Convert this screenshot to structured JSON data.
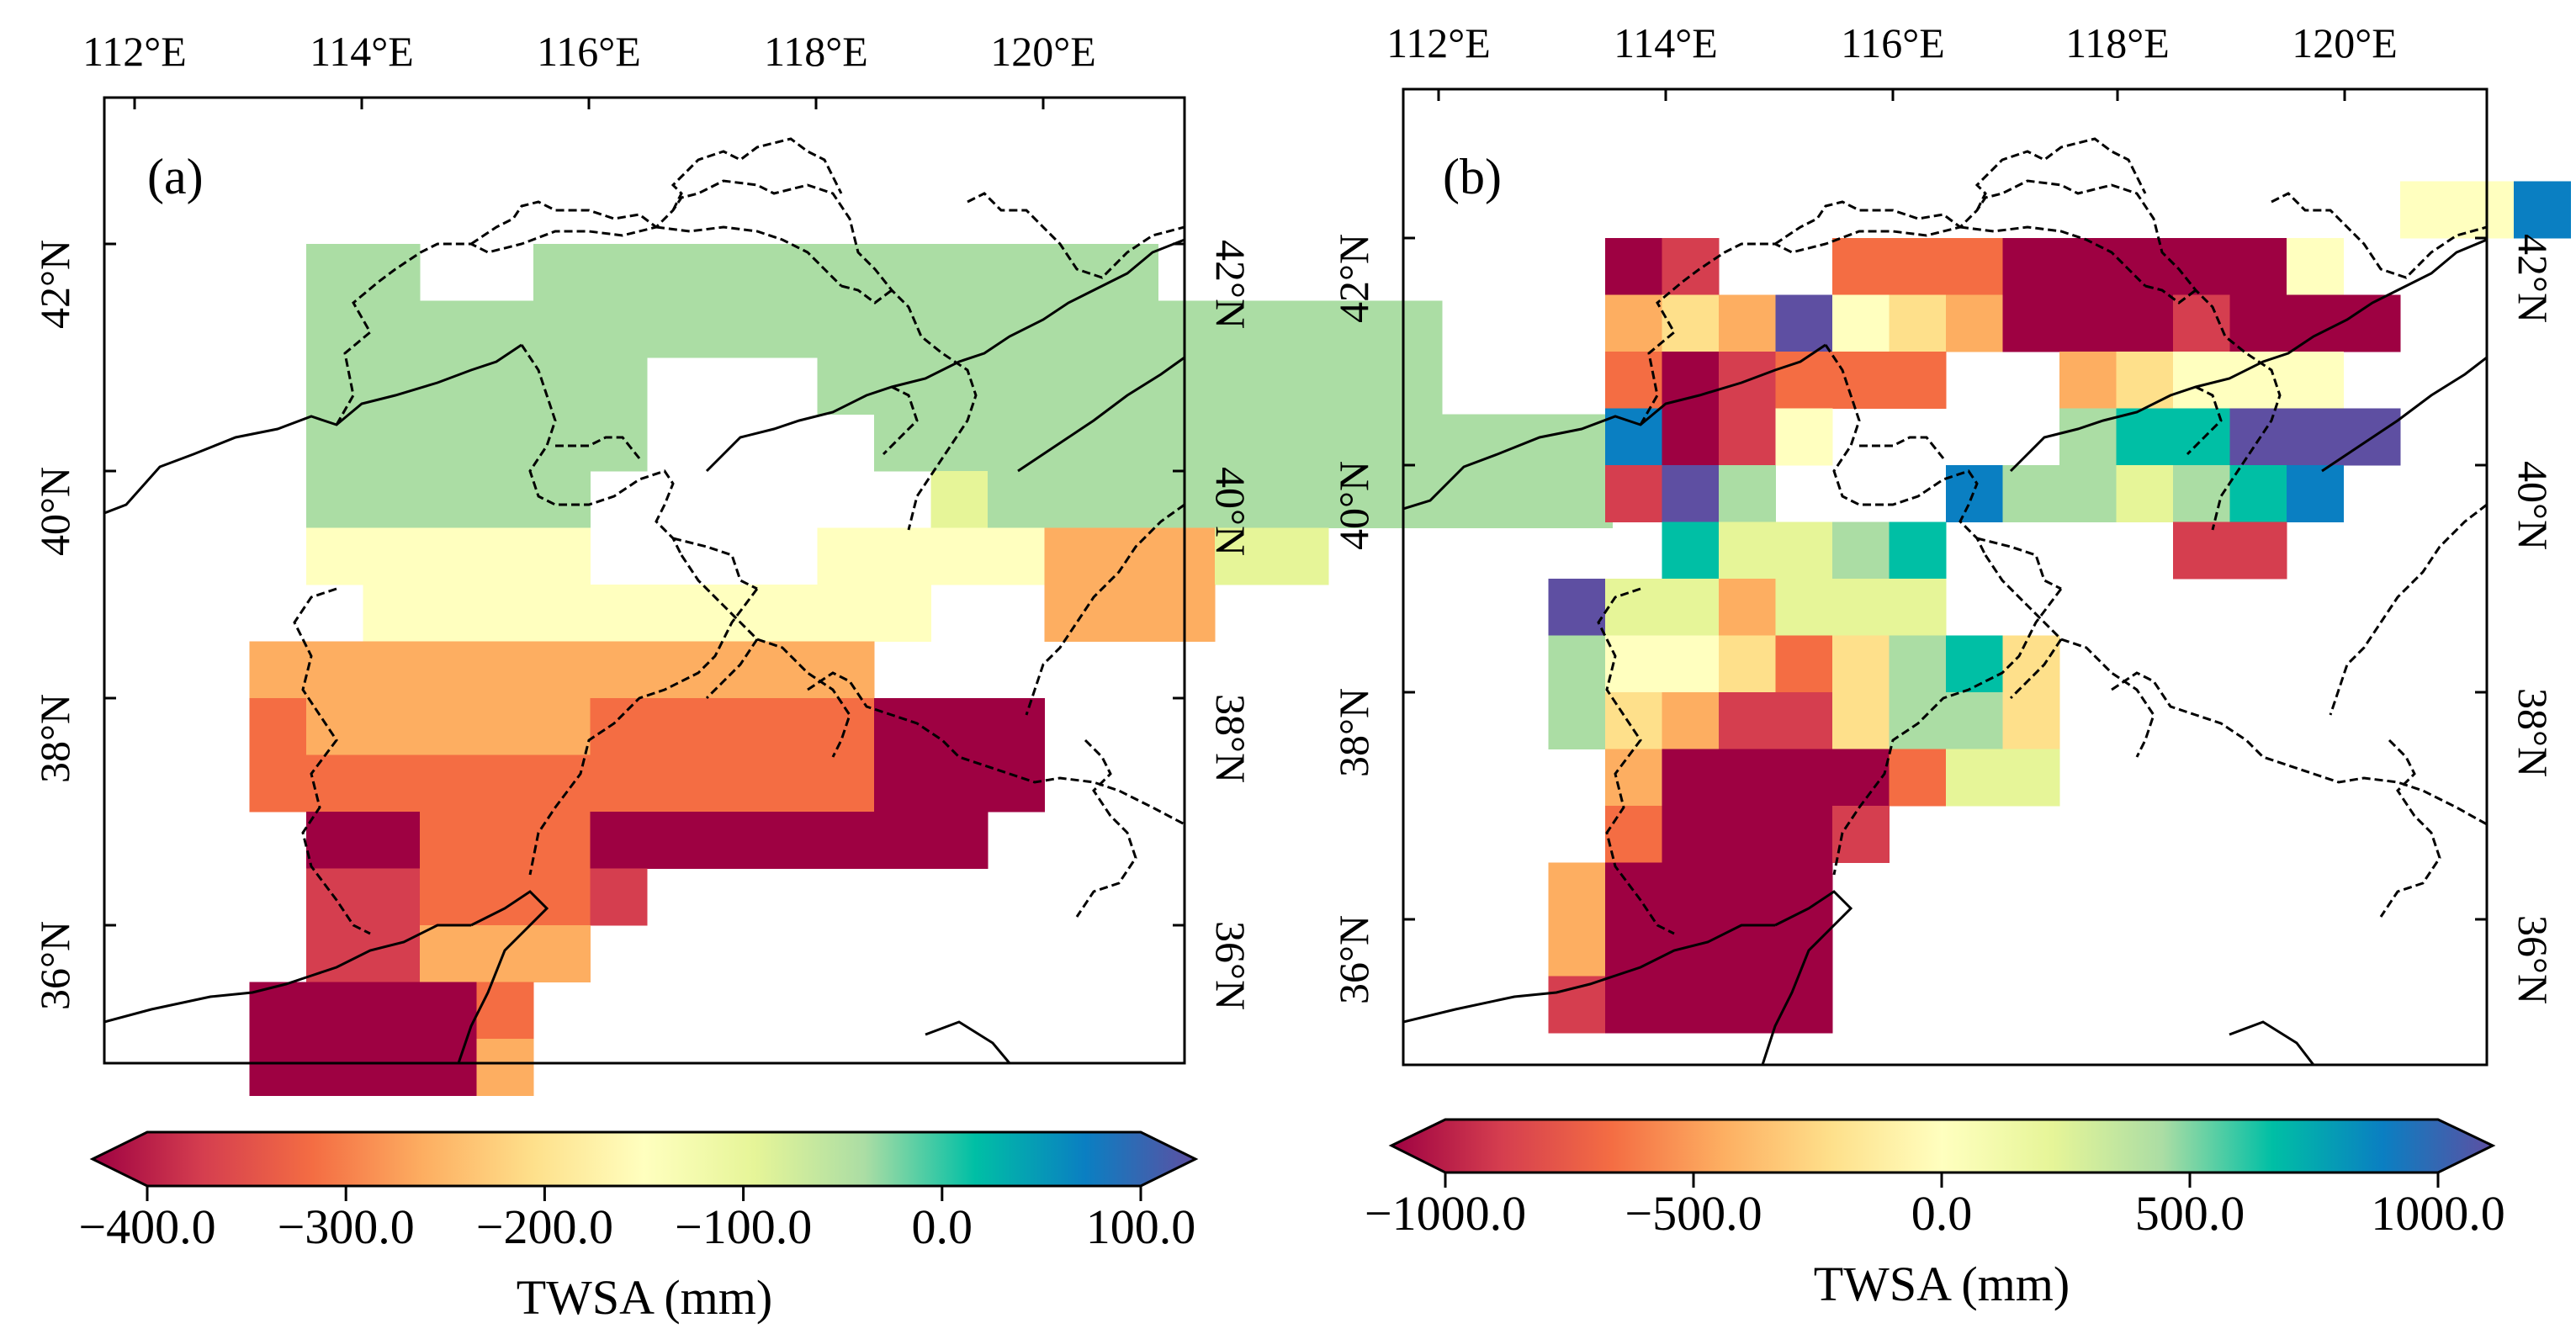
{
  "figure": {
    "panels": [
      {
        "id": "a",
        "label": "(a)",
        "x_ticks": [
          "112°E",
          "114°E",
          "116°E",
          "118°E",
          "120°E"
        ],
        "y_ticks": [
          "42°N",
          "40°N",
          "38°N",
          "36°N"
        ],
        "colorbar": {
          "ticks": [
            "−400.0",
            "−300.0",
            "−200.0",
            "−100.0",
            "0.0",
            "100.0"
          ],
          "label": "TWSA (mm)",
          "min": -400,
          "max": 100
        }
      },
      {
        "id": "b",
        "label": "(b)",
        "x_ticks": [
          "112°E",
          "114°E",
          "116°E",
          "118°E",
          "120°E"
        ],
        "y_ticks": [
          "42°N",
          "40°N",
          "38°N",
          "36°N"
        ],
        "colorbar": {
          "ticks": [
            "−1000.0",
            "−500.0",
            "0.0",
            "500.0",
            "1000.0"
          ],
          "label": "TWSA (mm)",
          "min": -1000,
          "max": 1000
        }
      }
    ],
    "colormap": [
      "#9e0142",
      "#d53e4f",
      "#f46d43",
      "#fdae61",
      "#fee08b",
      "#ffffbf",
      "#e6f598",
      "#abdda4",
      "#00bfa5",
      "#0a7fc2",
      "#5e4fa2"
    ],
    "extent": {
      "lon": [
        111.7,
        121.3
      ],
      "lat": [
        34.9,
        43.3
      ],
      "lon_ticks": [
        112,
        114,
        116,
        118,
        120
      ],
      "lat_ticks": [
        42,
        40,
        38,
        36
      ]
    }
  }
}
